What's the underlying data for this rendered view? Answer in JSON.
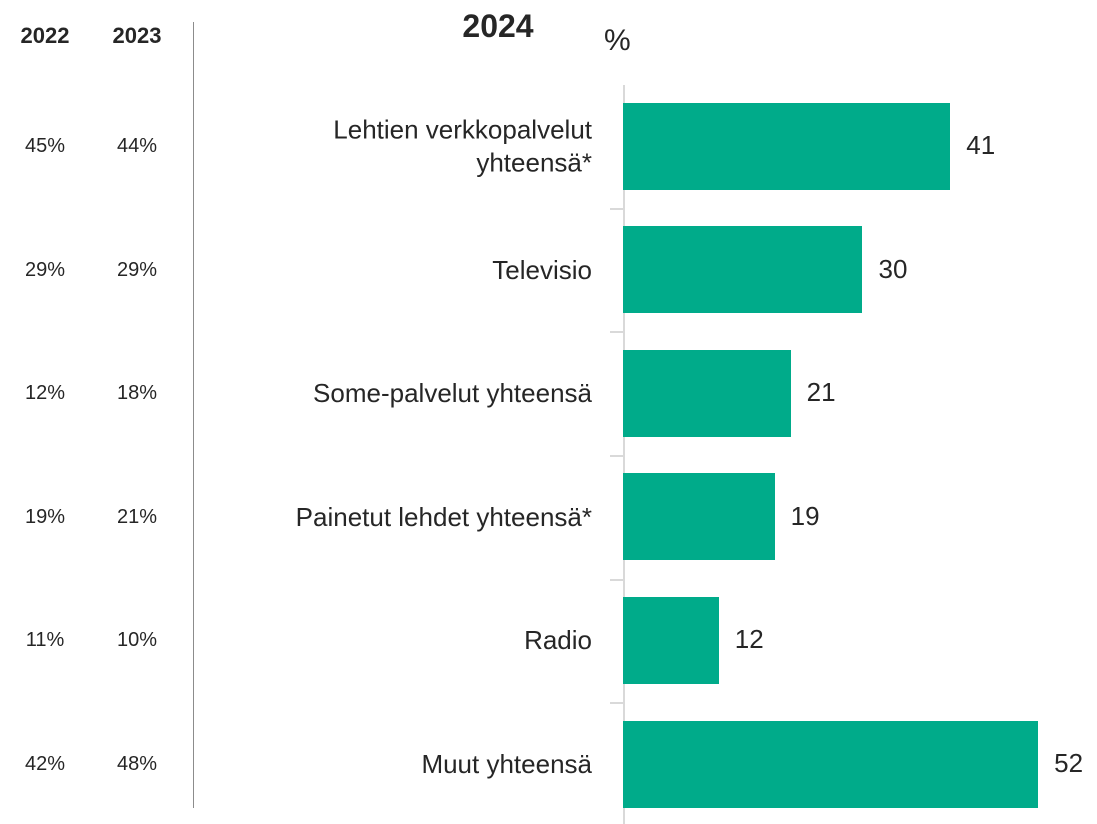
{
  "chart_data": {
    "type": "bar",
    "orientation": "horizontal",
    "title": "2024",
    "unit_label": "%",
    "categories": [
      "Lehtien verkkopalvelut\nyhteensä*",
      "Televisio",
      "Some-palvelut yhteensä",
      "Painetut lehdet yhteensä*",
      "Radio",
      "Muut yhteensä"
    ],
    "values": [
      41,
      30,
      21,
      19,
      12,
      52
    ],
    "color": "#00ab8a",
    "xlim": [
      0,
      59
    ]
  },
  "table": {
    "headers": [
      "2022",
      "2023"
    ],
    "rows": [
      [
        "45%",
        "44%"
      ],
      [
        "29%",
        "29%"
      ],
      [
        "12%",
        "18%"
      ],
      [
        "19%",
        "21%"
      ],
      [
        "11%",
        "10%"
      ],
      [
        "42%",
        "48%"
      ]
    ]
  }
}
